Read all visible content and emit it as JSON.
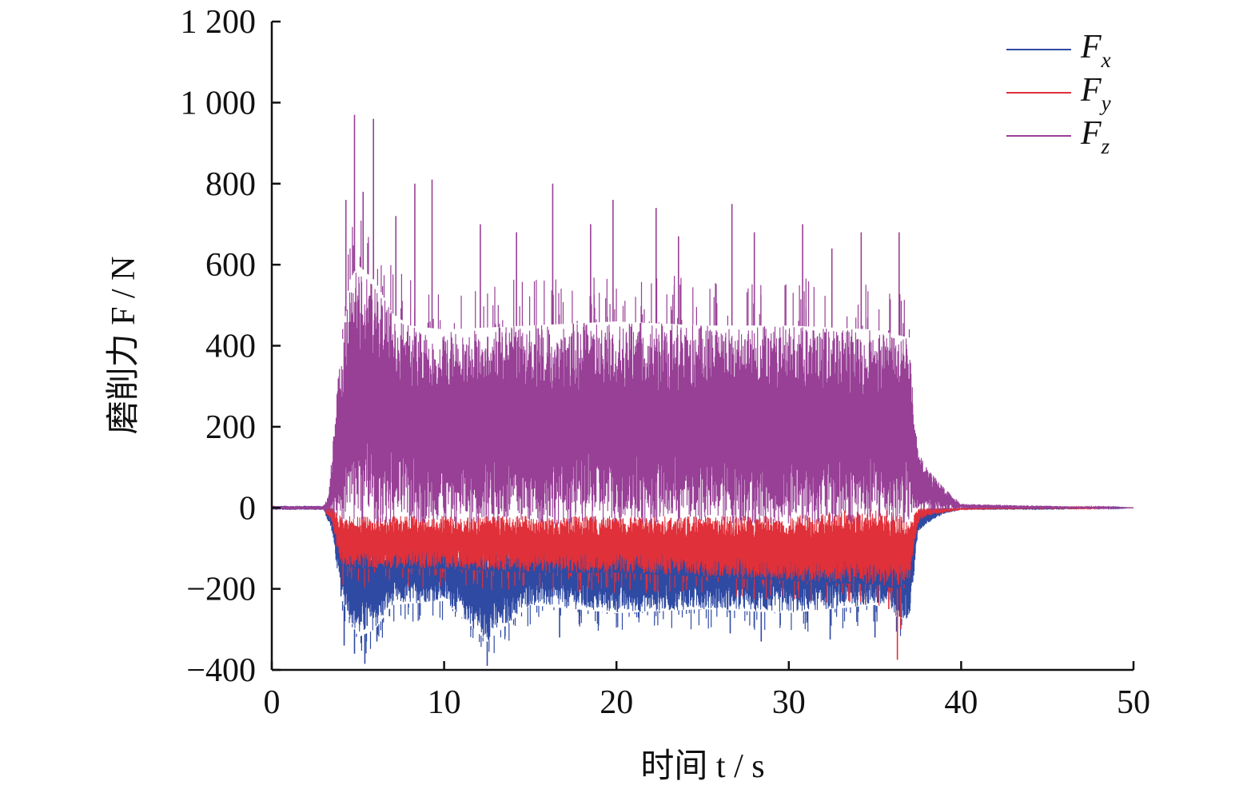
{
  "chart_data": {
    "type": "line",
    "title": "",
    "xlabel": "时间 t / s",
    "ylabel": "磨削力 F / N",
    "xlim": [
      0,
      50
    ],
    "ylim": [
      -400,
      1200
    ],
    "x_ticks": [
      0,
      10,
      20,
      30,
      40,
      50
    ],
    "x_tick_labels": [
      "0",
      "10",
      "20",
      "30",
      "40",
      "50"
    ],
    "y_ticks": [
      -400,
      -200,
      0,
      200,
      400,
      600,
      800,
      1000,
      1200
    ],
    "y_tick_labels": [
      "−400",
      "−200",
      "0",
      "200",
      "400",
      "600",
      "800",
      "1 000",
      "1 200"
    ],
    "grid": false,
    "legend_position": "top-right",
    "series": [
      {
        "name": "Fx",
        "legend_main": "F",
        "legend_sub": "x",
        "color": "#2f4aa3",
        "x": [
          0,
          3,
          3.5,
          4,
          5,
          6,
          7,
          10,
          12.5,
          15,
          20,
          25,
          30,
          35,
          36.3,
          37,
          37.5,
          38,
          39,
          40,
          45,
          50
        ],
        "upper": [
          5,
          5,
          0,
          -60,
          -60,
          -70,
          -70,
          -70,
          -70,
          -70,
          -70,
          -70,
          -70,
          -70,
          -70,
          -70,
          -20,
          0,
          0,
          0,
          5,
          0
        ],
        "lower": [
          -5,
          -5,
          -60,
          -220,
          -320,
          -300,
          -240,
          -230,
          -330,
          -240,
          -260,
          -250,
          -260,
          -240,
          -270,
          -280,
          -60,
          -40,
          -15,
          -5,
          -5,
          0
        ],
        "spikes_min": [
          [
            4.2,
            -340
          ],
          [
            4.8,
            -360
          ],
          [
            5.4,
            -385
          ],
          [
            6.1,
            -330
          ],
          [
            12.5,
            -390
          ],
          [
            16.7,
            -320
          ],
          [
            26.6,
            -310
          ],
          [
            28.4,
            -330
          ],
          [
            32.4,
            -325
          ],
          [
            35.0,
            -320
          ]
        ]
      },
      {
        "name": "Fy",
        "legend_main": "F",
        "legend_sub": "y",
        "color": "#e0303a",
        "x": [
          0,
          3,
          3.5,
          4,
          5,
          10,
          15,
          20,
          25,
          30,
          35,
          36.3,
          37,
          37.5,
          38,
          40,
          45,
          50
        ],
        "upper": [
          3,
          3,
          0,
          -20,
          -20,
          -20,
          -20,
          -20,
          -20,
          -20,
          0,
          -10,
          -40,
          0,
          0,
          0,
          2,
          0
        ],
        "lower": [
          -3,
          -3,
          -40,
          -140,
          -150,
          -150,
          -160,
          -160,
          -170,
          -180,
          -190,
          -200,
          -180,
          -40,
          -20,
          -5,
          -2,
          0
        ],
        "spikes_min": [
          [
            36.3,
            -375
          ],
          [
            36.5,
            -300
          ],
          [
            35.8,
            -250
          ]
        ]
      },
      {
        "name": "Fz",
        "legend_main": "F",
        "legend_sub": "z",
        "color": "#983f96",
        "x": [
          0,
          3,
          3.3,
          3.8,
          4.5,
          5,
          6,
          7,
          8,
          10,
          15,
          20,
          25,
          30,
          35,
          37,
          37.5,
          38,
          39,
          40,
          45,
          50
        ],
        "upper": [
          5,
          5,
          30,
          300,
          560,
          600,
          560,
          480,
          450,
          440,
          450,
          460,
          450,
          450,
          440,
          420,
          150,
          100,
          50,
          10,
          5,
          0
        ],
        "lower": [
          -5,
          -5,
          -10,
          -30,
          -40,
          -40,
          -40,
          -40,
          -40,
          -40,
          -40,
          -40,
          -40,
          -40,
          -40,
          -40,
          -20,
          -10,
          -5,
          -2,
          -2,
          0
        ],
        "spikes_max": [
          [
            4.3,
            760
          ],
          [
            4.8,
            970
          ],
          [
            5.3,
            780
          ],
          [
            5.9,
            960
          ],
          [
            7.2,
            720
          ],
          [
            8.3,
            800
          ],
          [
            9.3,
            810
          ],
          [
            12.1,
            700
          ],
          [
            14.2,
            680
          ],
          [
            16.3,
            800
          ],
          [
            18.5,
            700
          ],
          [
            19.8,
            760
          ],
          [
            22.3,
            740
          ],
          [
            23.6,
            670
          ],
          [
            26.7,
            750
          ],
          [
            28.0,
            680
          ],
          [
            30.8,
            700
          ],
          [
            32.5,
            640
          ],
          [
            34.2,
            680
          ],
          [
            36.4,
            680
          ]
        ]
      }
    ]
  }
}
